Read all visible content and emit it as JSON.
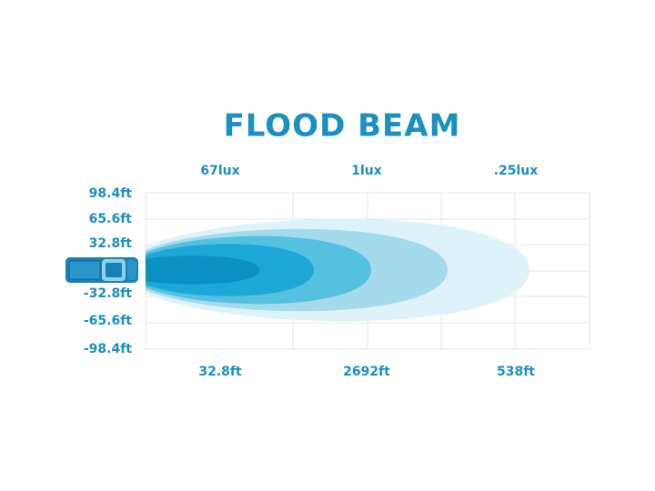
{
  "title": "FLOOD BEAM",
  "lux_labels": [
    "67lux",
    "1lux",
    ".25lux"
  ],
  "y_axis_labels": [
    "98.4ft",
    "65.6ft",
    "32.8ft",
    "-32.8ft",
    "-65.6ft",
    "-98.4ft"
  ],
  "distance_labels": [
    "32.8ft",
    "2692ft",
    "538ft"
  ]
}
